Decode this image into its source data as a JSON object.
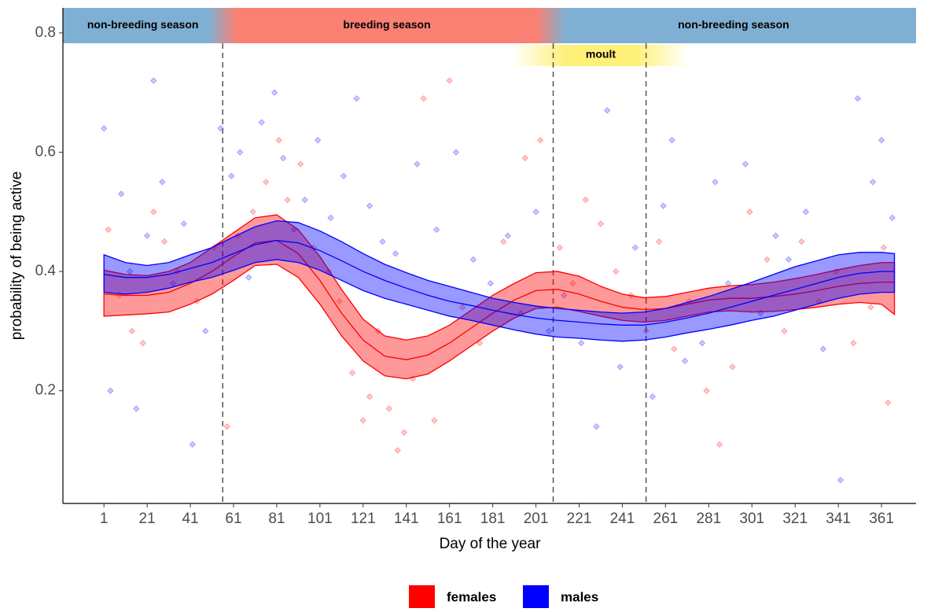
{
  "chart_data": {
    "type": "line",
    "xlabel": "Day of the year",
    "ylabel": "probability of being active",
    "xlim": [
      -18,
      377
    ],
    "ylim": [
      0.011,
      0.842
    ],
    "xticks": [
      1,
      21,
      41,
      61,
      81,
      101,
      121,
      141,
      161,
      181,
      201,
      221,
      241,
      261,
      281,
      301,
      321,
      341,
      361
    ],
    "yticks": [
      0.2,
      0.4,
      0.6,
      0.8
    ],
    "seasons": [
      {
        "label": "non-breeding season",
        "start": -18,
        "end": 56,
        "color": "#7fb0d3"
      },
      {
        "label": "breeding season",
        "start": 56,
        "end": 208,
        "color": "#f98072"
      },
      {
        "label": "non-breeding season",
        "start": 208,
        "end": 377,
        "color": "#7fb0d3"
      }
    ],
    "moult": {
      "label": "moult",
      "start": 190,
      "end": 272,
      "color": "#fff07a"
    },
    "vlines": [
      56,
      209,
      252
    ],
    "x": [
      1,
      11,
      21,
      31,
      41,
      51,
      61,
      71,
      81,
      91,
      101,
      111,
      121,
      131,
      141,
      151,
      161,
      171,
      181,
      191,
      201,
      211,
      221,
      231,
      241,
      251,
      261,
      271,
      281,
      291,
      301,
      311,
      321,
      331,
      341,
      351,
      361,
      367
    ],
    "series": [
      {
        "name": "females",
        "color": "#ff0000",
        "values": [
          0.362,
          0.36,
          0.36,
          0.365,
          0.38,
          0.4,
          0.425,
          0.448,
          0.452,
          0.43,
          0.385,
          0.33,
          0.285,
          0.258,
          0.252,
          0.26,
          0.28,
          0.305,
          0.33,
          0.352,
          0.368,
          0.37,
          0.362,
          0.35,
          0.34,
          0.336,
          0.338,
          0.345,
          0.352,
          0.355,
          0.355,
          0.358,
          0.362,
          0.368,
          0.375,
          0.38,
          0.382,
          0.382
        ],
        "upper": [
          0.402,
          0.395,
          0.393,
          0.4,
          0.415,
          0.44,
          0.465,
          0.49,
          0.495,
          0.47,
          0.425,
          0.37,
          0.32,
          0.292,
          0.285,
          0.292,
          0.31,
          0.335,
          0.36,
          0.38,
          0.398,
          0.4,
          0.392,
          0.375,
          0.362,
          0.356,
          0.358,
          0.365,
          0.372,
          0.376,
          0.378,
          0.382,
          0.388,
          0.395,
          0.403,
          0.41,
          0.415,
          0.415
        ],
        "lower": [
          0.325,
          0.327,
          0.329,
          0.332,
          0.345,
          0.362,
          0.385,
          0.41,
          0.412,
          0.39,
          0.345,
          0.292,
          0.25,
          0.225,
          0.22,
          0.228,
          0.25,
          0.275,
          0.3,
          0.322,
          0.338,
          0.34,
          0.333,
          0.325,
          0.318,
          0.315,
          0.318,
          0.325,
          0.332,
          0.334,
          0.332,
          0.333,
          0.336,
          0.34,
          0.345,
          0.348,
          0.345,
          0.328
        ],
        "points": {
          "x": [
            3,
            8,
            14,
            19,
            24,
            29,
            35,
            44,
            52,
            58,
            63,
            70,
            76,
            82,
            86,
            92,
            98,
            105,
            110,
            116,
            121,
            124,
            128,
            133,
            137,
            140,
            144,
            149,
            154,
            161,
            167,
            175,
            186,
            196,
            203,
            212,
            218,
            224,
            231,
            238,
            245,
            252,
            258,
            265,
            272,
            280,
            286,
            292,
            300,
            308,
            316,
            324,
            332,
            340,
            348,
            356,
            364,
            362
          ],
          "y": [
            0.47,
            0.36,
            0.3,
            0.28,
            0.5,
            0.45,
            0.4,
            0.35,
            0.44,
            0.14,
            0.46,
            0.5,
            0.55,
            0.62,
            0.52,
            0.58,
            0.44,
            0.4,
            0.35,
            0.23,
            0.15,
            0.19,
            0.3,
            0.17,
            0.1,
            0.13,
            0.22,
            0.69,
            0.15,
            0.72,
            0.34,
            0.28,
            0.45,
            0.59,
            0.62,
            0.44,
            0.38,
            0.52,
            0.48,
            0.4,
            0.36,
            0.3,
            0.45,
            0.27,
            0.35,
            0.2,
            0.11,
            0.24,
            0.5,
            0.42,
            0.3,
            0.45,
            0.35,
            0.4,
            0.28,
            0.34,
            0.18,
            0.44
          ]
        }
      },
      {
        "name": "males",
        "color": "#0000ff",
        "values": [
          0.395,
          0.39,
          0.39,
          0.395,
          0.405,
          0.415,
          0.43,
          0.445,
          0.452,
          0.448,
          0.435,
          0.418,
          0.4,
          0.385,
          0.372,
          0.36,
          0.35,
          0.343,
          0.335,
          0.328,
          0.322,
          0.318,
          0.315,
          0.312,
          0.31,
          0.31,
          0.315,
          0.322,
          0.33,
          0.34,
          0.35,
          0.36,
          0.37,
          0.38,
          0.39,
          0.397,
          0.4,
          0.4
        ],
        "upper": [
          0.428,
          0.415,
          0.41,
          0.415,
          0.428,
          0.44,
          0.458,
          0.475,
          0.485,
          0.482,
          0.468,
          0.45,
          0.43,
          0.412,
          0.398,
          0.385,
          0.375,
          0.365,
          0.355,
          0.348,
          0.342,
          0.338,
          0.335,
          0.332,
          0.33,
          0.332,
          0.338,
          0.348,
          0.358,
          0.37,
          0.382,
          0.395,
          0.408,
          0.418,
          0.428,
          0.432,
          0.432,
          0.43
        ],
        "lower": [
          0.365,
          0.362,
          0.365,
          0.372,
          0.382,
          0.39,
          0.402,
          0.415,
          0.42,
          0.415,
          0.402,
          0.385,
          0.368,
          0.355,
          0.345,
          0.335,
          0.325,
          0.318,
          0.31,
          0.302,
          0.295,
          0.29,
          0.288,
          0.285,
          0.283,
          0.285,
          0.29,
          0.297,
          0.303,
          0.31,
          0.318,
          0.325,
          0.335,
          0.345,
          0.355,
          0.362,
          0.365,
          0.365
        ],
        "points": {
          "x": [
            1,
            4,
            9,
            13,
            16,
            21,
            24,
            28,
            33,
            38,
            42,
            48,
            55,
            60,
            64,
            68,
            74,
            80,
            84,
            89,
            94,
            100,
            106,
            112,
            118,
            124,
            130,
            136,
            146,
            155,
            164,
            172,
            180,
            188,
            194,
            201,
            207,
            214,
            222,
            229,
            234,
            240,
            247,
            255,
            260,
            264,
            270,
            278,
            284,
            290,
            298,
            305,
            312,
            318,
            326,
            334,
            342,
            350,
            357,
            361,
            366
          ],
          "y": [
            0.64,
            0.2,
            0.53,
            0.4,
            0.17,
            0.46,
            0.72,
            0.55,
            0.38,
            0.48,
            0.11,
            0.3,
            0.64,
            0.56,
            0.6,
            0.39,
            0.65,
            0.7,
            0.59,
            0.47,
            0.52,
            0.62,
            0.49,
            0.56,
            0.69,
            0.51,
            0.45,
            0.43,
            0.58,
            0.47,
            0.6,
            0.42,
            0.38,
            0.46,
            0.33,
            0.5,
            0.3,
            0.36,
            0.28,
            0.14,
            0.67,
            0.24,
            0.44,
            0.19,
            0.51,
            0.62,
            0.25,
            0.28,
            0.55,
            0.38,
            0.58,
            0.33,
            0.46,
            0.42,
            0.5,
            0.27,
            0.05,
            0.69,
            0.55,
            0.62,
            0.49
          ]
        }
      }
    ]
  }
}
